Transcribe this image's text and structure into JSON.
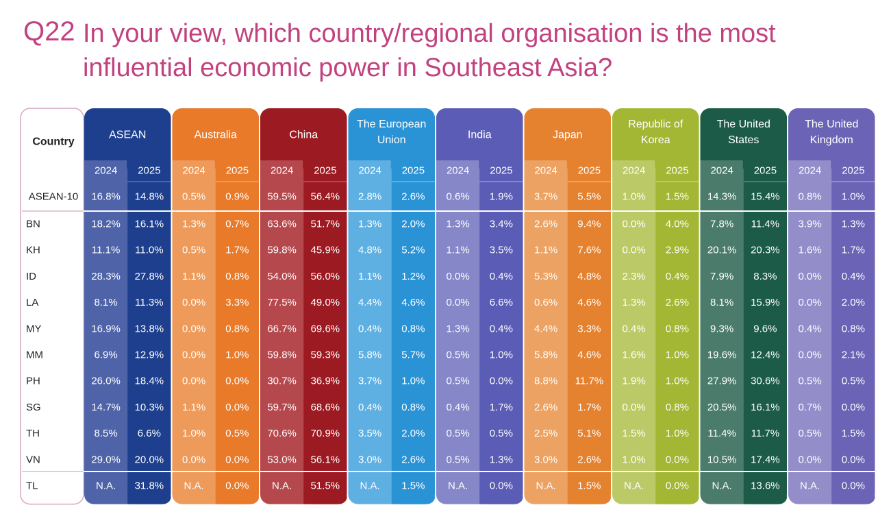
{
  "question": {
    "number": "Q22",
    "text": "In your view, which country/regional organisation is the most influential economic power in Southeast Asia?"
  },
  "chart_data": {
    "type": "table",
    "row_header_label": "Country",
    "years": [
      "2024",
      "2025"
    ],
    "groups": [
      {
        "name": "ASEAN",
        "color": "#1d3f8e",
        "light": "#4e63a8"
      },
      {
        "name": "Australia",
        "color": "#e87a2a",
        "light": "#ee9a5a"
      },
      {
        "name": "China",
        "color": "#9c1a22",
        "light": "#b4484c"
      },
      {
        "name": "The European Union",
        "color": "#2a93d6",
        "light": "#5fb0e2"
      },
      {
        "name": "India",
        "color": "#5a5cb5",
        "light": "#8587c8"
      },
      {
        "name": "Japan",
        "color": "#e5822f",
        "light": "#eca262"
      },
      {
        "name": "Republic of Korea",
        "color": "#a3b734",
        "light": "#bbca66"
      },
      {
        "name": "The United States",
        "color": "#1b5b48",
        "light": "#4b7c6b"
      },
      {
        "name": "The United Kingdom",
        "color": "#6b63b6",
        "light": "#938dca"
      }
    ],
    "rows": [
      {
        "label": "ASEAN-10",
        "values": [
          "16.8%",
          "14.8%",
          "0.5%",
          "0.9%",
          "59.5%",
          "56.4%",
          "2.8%",
          "2.6%",
          "0.6%",
          "1.9%",
          "3.7%",
          "5.5%",
          "1.0%",
          "1.5%",
          "14.3%",
          "15.4%",
          "0.8%",
          "1.0%"
        ]
      },
      {
        "label": "BN",
        "values": [
          "18.2%",
          "16.1%",
          "1.3%",
          "0.7%",
          "63.6%",
          "51.7%",
          "1.3%",
          "2.0%",
          "1.3%",
          "3.4%",
          "2.6%",
          "9.4%",
          "0.0%",
          "4.0%",
          "7.8%",
          "11.4%",
          "3.9%",
          "1.3%"
        ]
      },
      {
        "label": "KH",
        "values": [
          "11.1%",
          "11.0%",
          "0.5%",
          "1.7%",
          "59.8%",
          "45.9%",
          "4.8%",
          "5.2%",
          "1.1%",
          "3.5%",
          "1.1%",
          "7.6%",
          "0.0%",
          "2.9%",
          "20.1%",
          "20.3%",
          "1.6%",
          "1.7%"
        ]
      },
      {
        "label": "ID",
        "values": [
          "28.3%",
          "27.8%",
          "1.1%",
          "0.8%",
          "54.0%",
          "56.0%",
          "1.1%",
          "1.2%",
          "0.0%",
          "0.4%",
          "5.3%",
          "4.8%",
          "2.3%",
          "0.4%",
          "7.9%",
          "8.3%",
          "0.0%",
          "0.4%"
        ]
      },
      {
        "label": "LA",
        "values": [
          "8.1%",
          "11.3%",
          "0.0%",
          "3.3%",
          "77.5%",
          "49.0%",
          "4.4%",
          "4.6%",
          "0.0%",
          "6.6%",
          "0.6%",
          "4.6%",
          "1.3%",
          "2.6%",
          "8.1%",
          "15.9%",
          "0.0%",
          "2.0%"
        ]
      },
      {
        "label": "MY",
        "values": [
          "16.9%",
          "13.8%",
          "0.0%",
          "0.8%",
          "66.7%",
          "69.6%",
          "0.4%",
          "0.8%",
          "1.3%",
          "0.4%",
          "4.4%",
          "3.3%",
          "0.4%",
          "0.8%",
          "9.3%",
          "9.6%",
          "0.4%",
          "0.8%"
        ]
      },
      {
        "label": "MM",
        "values": [
          "6.9%",
          "12.9%",
          "0.0%",
          "1.0%",
          "59.8%",
          "59.3%",
          "5.8%",
          "5.7%",
          "0.5%",
          "1.0%",
          "5.8%",
          "4.6%",
          "1.6%",
          "1.0%",
          "19.6%",
          "12.4%",
          "0.0%",
          "2.1%"
        ]
      },
      {
        "label": "PH",
        "values": [
          "26.0%",
          "18.4%",
          "0.0%",
          "0.0%",
          "30.7%",
          "36.9%",
          "3.7%",
          "1.0%",
          "0.5%",
          "0.0%",
          "8.8%",
          "11.7%",
          "1.9%",
          "1.0%",
          "27.9%",
          "30.6%",
          "0.5%",
          "0.5%"
        ]
      },
      {
        "label": "SG",
        "values": [
          "14.7%",
          "10.3%",
          "1.1%",
          "0.0%",
          "59.7%",
          "68.6%",
          "0.4%",
          "0.8%",
          "0.4%",
          "1.7%",
          "2.6%",
          "1.7%",
          "0.0%",
          "0.8%",
          "20.5%",
          "16.1%",
          "0.7%",
          "0.0%"
        ]
      },
      {
        "label": "TH",
        "values": [
          "8.5%",
          "6.6%",
          "1.0%",
          "0.5%",
          "70.6%",
          "70.9%",
          "3.5%",
          "2.0%",
          "0.5%",
          "0.5%",
          "2.5%",
          "5.1%",
          "1.5%",
          "1.0%",
          "11.4%",
          "11.7%",
          "0.5%",
          "1.5%"
        ]
      },
      {
        "label": "VN",
        "values": [
          "29.0%",
          "20.0%",
          "0.0%",
          "0.0%",
          "53.0%",
          "56.1%",
          "3.0%",
          "2.6%",
          "0.5%",
          "1.3%",
          "3.0%",
          "2.6%",
          "1.0%",
          "0.0%",
          "10.5%",
          "17.4%",
          "0.0%",
          "0.0%"
        ]
      },
      {
        "label": "TL",
        "values": [
          "N.A.",
          "31.8%",
          "N.A.",
          "0.0%",
          "N.A.",
          "51.5%",
          "N.A.",
          "1.5%",
          "N.A.",
          "0.0%",
          "N.A.",
          "1.5%",
          "N.A.",
          "0.0%",
          "N.A.",
          "13.6%",
          "N.A.",
          "0.0%"
        ]
      }
    ]
  }
}
